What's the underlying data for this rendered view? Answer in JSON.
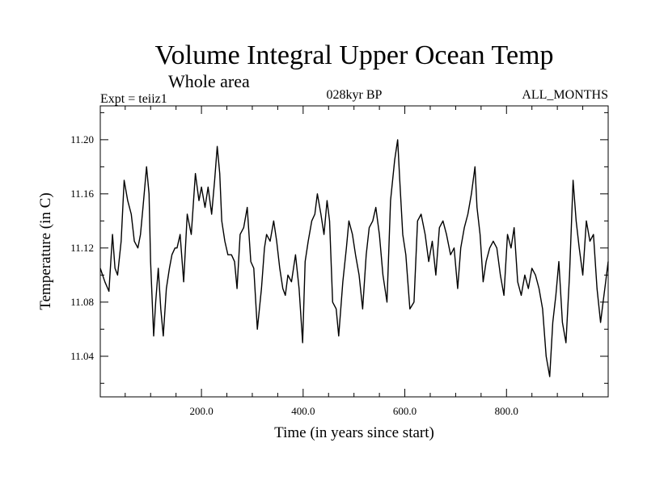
{
  "chart_data": {
    "type": "line",
    "title": "Volume Integral Upper Ocean Temp",
    "subtitle": "Whole area",
    "experiment_label": "Expt = teiiz1",
    "period_label": "028kyr BP",
    "months_label": "ALL_MONTHS",
    "xlabel": "Time (in years since start)",
    "ylabel": "Temperature (in C)",
    "xlim": [
      1,
      1000
    ],
    "ylim": [
      11.01,
      11.225
    ],
    "x_ticks": [
      200,
      400,
      600,
      800
    ],
    "x_tick_labels": [
      "200.0",
      "400.0",
      "600.0",
      "800.0"
    ],
    "y_ticks": [
      11.04,
      11.08,
      11.12,
      11.16,
      11.2
    ],
    "y_tick_labels": [
      "11.04",
      "11.08",
      "11.12",
      "11.16",
      "11.20"
    ],
    "grid": false,
    "series": [
      {
        "x": [
          1,
          10,
          18,
          25,
          30,
          35,
          42,
          48,
          55,
          62,
          68,
          75,
          80,
          85,
          92,
          97,
          100,
          106,
          110,
          115,
          120,
          125,
          131,
          137,
          142,
          148,
          152,
          158,
          165,
          172,
          180,
          188,
          195,
          200,
          207,
          213,
          220,
          226,
          231,
          236,
          240,
          246,
          252,
          259,
          265,
          270,
          276,
          283,
          290,
          297,
          303,
          310,
          318,
          324,
          328,
          335,
          342,
          348,
          354,
          360,
          365,
          370,
          377,
          385,
          392,
          399,
          404,
          410,
          417,
          423,
          428,
          435,
          441,
          447,
          452,
          458,
          465,
          470,
          478,
          485,
          490,
          497,
          503,
          510,
          517,
          524,
          530,
          537,
          543,
          550,
          557,
          565,
          572,
          580,
          586,
          590,
          596,
          602,
          610,
          618,
          625,
          632,
          640,
          647,
          654,
          661,
          668,
          675,
          682,
          690,
          697,
          704,
          710,
          717,
          724,
          731,
          738,
          742,
          748,
          754,
          760,
          767,
          774,
          781,
          788,
          795,
          802,
          809,
          815,
          822,
          829,
          836,
          843,
          850,
          857,
          864,
          871,
          878,
          885,
          891,
          897,
          903,
          910,
          917,
          924,
          931,
          937,
          943,
          950,
          957,
          964,
          971,
          978,
          985,
          990,
          995,
          1000
        ],
        "y": [
          11.105,
          11.095,
          11.088,
          11.13,
          11.105,
          11.1,
          11.125,
          11.17,
          11.155,
          11.145,
          11.125,
          11.12,
          11.13,
          11.15,
          11.18,
          11.16,
          11.11,
          11.055,
          11.08,
          11.105,
          11.075,
          11.055,
          11.09,
          11.105,
          11.115,
          11.12,
          11.12,
          11.13,
          11.095,
          11.145,
          11.13,
          11.175,
          11.155,
          11.165,
          11.15,
          11.165,
          11.145,
          11.17,
          11.195,
          11.175,
          11.14,
          11.125,
          11.115,
          11.115,
          11.11,
          11.09,
          11.13,
          11.135,
          11.15,
          11.11,
          11.105,
          11.06,
          11.09,
          11.12,
          11.13,
          11.125,
          11.14,
          11.125,
          11.105,
          11.09,
          11.085,
          11.1,
          11.095,
          11.115,
          11.09,
          11.05,
          11.11,
          11.125,
          11.14,
          11.145,
          11.16,
          11.145,
          11.13,
          11.155,
          11.14,
          11.08,
          11.075,
          11.055,
          11.095,
          11.12,
          11.14,
          11.13,
          11.115,
          11.1,
          11.075,
          11.115,
          11.135,
          11.14,
          11.15,
          11.13,
          11.1,
          11.08,
          11.155,
          11.185,
          11.2,
          11.17,
          11.13,
          11.115,
          11.075,
          11.08,
          11.14,
          11.145,
          11.13,
          11.11,
          11.125,
          11.1,
          11.135,
          11.14,
          11.13,
          11.115,
          11.12,
          11.09,
          11.12,
          11.135,
          11.145,
          11.16,
          11.18,
          11.15,
          11.13,
          11.095,
          11.11,
          11.12,
          11.125,
          11.12,
          11.1,
          11.085,
          11.13,
          11.12,
          11.135,
          11.095,
          11.085,
          11.1,
          11.09,
          11.105,
          11.1,
          11.09,
          11.075,
          11.04,
          11.025,
          11.065,
          11.085,
          11.11,
          11.065,
          11.05,
          11.1,
          11.17,
          11.14,
          11.12,
          11.1,
          11.14,
          11.125,
          11.13,
          11.09,
          11.065,
          11.08,
          11.095,
          11.11
        ]
      }
    ]
  }
}
